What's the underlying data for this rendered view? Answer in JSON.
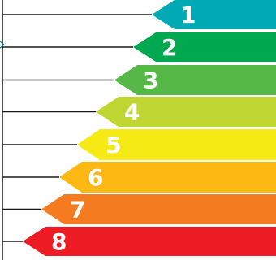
{
  "rating_scale": {
    "bars": [
      {
        "label": "1",
        "color": "#00aab5"
      },
      {
        "label": "2",
        "color": "#00a84f"
      },
      {
        "label": "3",
        "color": "#56b947"
      },
      {
        "label": "4",
        "color": "#bfd632"
      },
      {
        "label": "5",
        "color": "#f5ea14"
      },
      {
        "label": "6",
        "color": "#fdb813"
      },
      {
        "label": "7",
        "color": "#f47b20"
      },
      {
        "label": "8",
        "color": "#ed1c24"
      }
    ]
  }
}
